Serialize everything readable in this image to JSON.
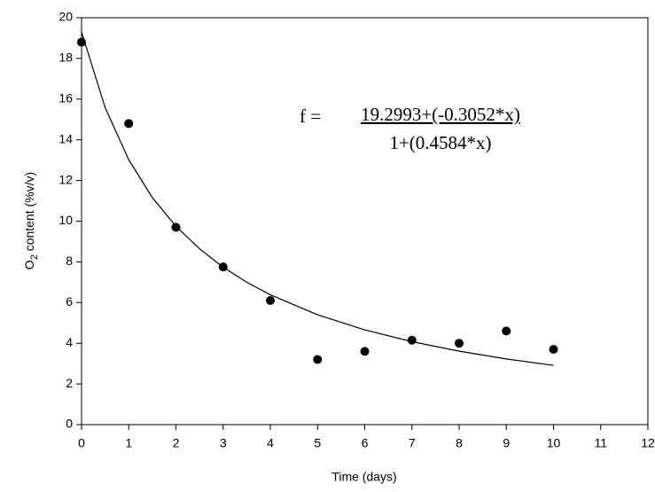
{
  "chart_data": {
    "type": "scatter",
    "x": [
      0,
      1,
      2,
      3,
      4,
      5,
      6,
      7,
      8,
      9,
      10
    ],
    "values": [
      18.8,
      14.8,
      9.7,
      7.75,
      6.1,
      3.2,
      3.6,
      4.15,
      4.0,
      4.6,
      3.7
    ],
    "color": "#000000",
    "fit": {
      "x": [
        0,
        0.5,
        1,
        1.5,
        2,
        2.5,
        3,
        3.5,
        4,
        5,
        6,
        7,
        8,
        9,
        10
      ],
      "values": [
        19.3,
        15.58,
        13.02,
        11.16,
        9.75,
        8.64,
        7.74,
        7.0,
        6.38,
        5.4,
        4.66,
        4.08,
        3.61,
        3.23,
        2.91
      ]
    },
    "equation": {
      "lhs": "f =",
      "numerator": "19.2993+(-0.3052*x)",
      "denominator": "1+(0.4584*x)"
    },
    "xlabel": "Time (days)",
    "ylabel": [
      "O",
      "2",
      " content (%v/v)"
    ],
    "xlim": [
      0,
      12
    ],
    "xticks": [
      0,
      1,
      2,
      3,
      4,
      5,
      6,
      7,
      8,
      9,
      10,
      11,
      12
    ],
    "ylim": [
      0,
      20
    ],
    "yticks": [
      0,
      2,
      4,
      6,
      8,
      10,
      12,
      14,
      16,
      18,
      20
    ],
    "grid": false
  }
}
